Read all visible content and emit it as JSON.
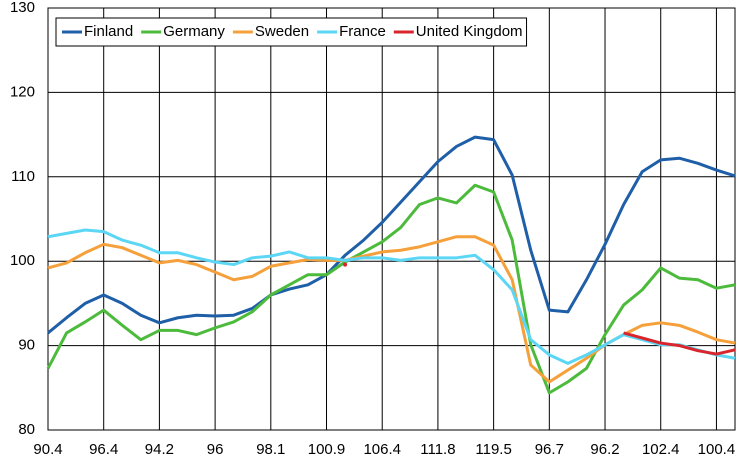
{
  "chart_data": {
    "type": "line",
    "x": [
      0,
      4,
      8,
      12,
      16,
      20,
      24,
      28,
      32,
      36,
      40,
      44,
      48,
      52,
      56,
      60,
      64,
      68,
      72,
      76,
      80,
      84,
      88,
      92,
      96,
      100,
      104,
      108,
      112,
      116,
      120,
      124,
      128,
      132,
      136,
      140,
      144,
      148
    ],
    "xlim": [
      0,
      148
    ],
    "xticks": [
      {
        "value": 0,
        "label": "90.4"
      },
      {
        "value": 12,
        "label": "96.4"
      },
      {
        "value": 24,
        "label": "94.2"
      },
      {
        "value": 36,
        "label": "96"
      },
      {
        "value": 48,
        "label": "98.1"
      },
      {
        "value": 60,
        "label": "100.9"
      },
      {
        "value": 72,
        "label": "106.4"
      },
      {
        "value": 84,
        "label": "111.8"
      },
      {
        "value": 96,
        "label": "119.5"
      },
      {
        "value": 108,
        "label": "96.7"
      },
      {
        "value": 120,
        "label": "96.2"
      },
      {
        "value": 132,
        "label": "102.4"
      },
      {
        "value": 144,
        "label": "100.4"
      }
    ],
    "ylim": [
      80,
      130
    ],
    "yticks": [
      80,
      90,
      100,
      110,
      120,
      130
    ],
    "grid": true,
    "legend": "upper left",
    "series": [
      {
        "name": "Finland",
        "color": "#1f5fa8",
        "values": [
          91.5,
          93.3,
          95,
          96,
          95,
          93.6,
          92.7,
          93.3,
          93.6,
          93.5,
          93.6,
          94.4,
          96,
          96.7,
          97.2,
          98.4,
          100.7,
          102.5,
          104.6,
          107,
          109.4,
          111.8,
          113.6,
          114.7,
          114.4,
          110.2,
          101.3,
          94.2,
          94,
          97.8,
          102,
          106.7,
          110.6,
          112,
          112.2,
          111.6,
          110.8,
          110.1
        ]
      },
      {
        "name": "Germany",
        "color": "#4cbb3c",
        "values": [
          87.3,
          91.5,
          92.8,
          94.2,
          92.4,
          90.7,
          91.8,
          91.8,
          91.3,
          92.1,
          92.8,
          94,
          96,
          97.2,
          98.4,
          98.4,
          99.9,
          101.1,
          102.3,
          104,
          106.7,
          107.5,
          106.9,
          109,
          108.2,
          102.5,
          90.1,
          84.4,
          85.7,
          87.3,
          91.3,
          94.8,
          96.6,
          99.2,
          98,
          97.8,
          96.8,
          97.2
        ]
      },
      {
        "name": "Sweden",
        "color": "#f5a03a",
        "values": [
          99.2,
          99.8,
          101,
          102,
          101.6,
          100.7,
          99.8,
          100.1,
          99.6,
          98.7,
          97.8,
          98.2,
          99.4,
          99.8,
          100.2,
          100.1,
          100.1,
          100.6,
          101.1,
          101.3,
          101.7,
          102.3,
          102.9,
          102.9,
          101.9,
          97.8,
          87.7,
          85.7,
          87.1,
          88.5,
          90.1,
          91.3,
          92.4,
          92.7,
          92.4,
          91.6,
          90.7,
          90.3
        ]
      },
      {
        "name": "France",
        "color": "#5cd6f5",
        "values": [
          102.9,
          103.3,
          103.7,
          103.5,
          102.5,
          101.9,
          101,
          101,
          100.4,
          99.9,
          99.6,
          100.4,
          100.6,
          101.1,
          100.4,
          100.4,
          100.1,
          100.4,
          100.4,
          100.1,
          100.4,
          100.4,
          100.4,
          100.7,
          99,
          96.6,
          90.7,
          88.9,
          87.9,
          88.9,
          90.1,
          91.3,
          90.7,
          90.1,
          90.1,
          89.5,
          88.9,
          88.5
        ]
      },
      {
        "name": "United Kingdom",
        "color": "#d9262c",
        "values": [
          null,
          null,
          null,
          null,
          null,
          null,
          null,
          null,
          null,
          null,
          null,
          null,
          null,
          null,
          null,
          null,
          99.6,
          null,
          null,
          null,
          null,
          null,
          null,
          null,
          null,
          null,
          null,
          null,
          null,
          null,
          null,
          91.5,
          90.9,
          90.3,
          90,
          89.4,
          89,
          89.5
        ]
      }
    ]
  }
}
